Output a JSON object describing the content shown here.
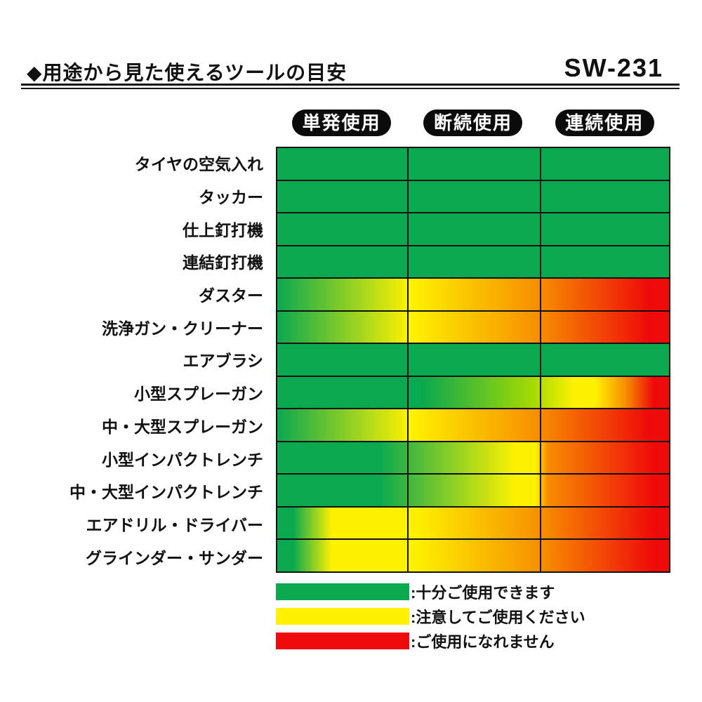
{
  "header": {
    "title": "◆用途から見た使えるツールの目安",
    "model": "SW-231"
  },
  "columns": [
    {
      "label": "単発使用"
    },
    {
      "label": "断続使用"
    },
    {
      "label": "連続使用"
    }
  ],
  "legend": [
    {
      "color": "#0AA84F",
      "label": ":十分ご使用できます"
    },
    {
      "color": "#FFF200",
      "label": ":注意してご使用ください"
    },
    {
      "color": "#EF0A0A",
      "label": ":ご使用になれません"
    }
  ],
  "colors": {
    "ok_green": "#0AA84F",
    "caution_yellow": "#FFF200",
    "warning_orange": "#F78D00",
    "no_red": "#EF0A0A",
    "grid_line": "#111111",
    "pill_black": "#0B0B0B"
  },
  "chart_data": {
    "type": "heatmap",
    "title": "◆用途から見た使えるツールの目安",
    "model": "SW-231",
    "categories": [
      "単発使用",
      "断続使用",
      "連続使用"
    ],
    "legend": [
      {
        "color": "#0AA84F",
        "meaning": "十分ご使用できます"
      },
      {
        "color": "#FFF200",
        "meaning": "注意してご使用ください"
      },
      {
        "color": "#EF0A0A",
        "meaning": "ご使用になれません"
      }
    ],
    "rows": [
      {
        "label": "タイヤの空気入れ",
        "ratings": [
          "ok",
          "ok",
          "ok"
        ],
        "stops": [
          [
            "#0AA84F",
            0
          ],
          [
            "#0AA84F",
            100
          ]
        ]
      },
      {
        "label": "タッカー",
        "ratings": [
          "ok",
          "ok",
          "ok"
        ],
        "stops": [
          [
            "#0AA84F",
            0
          ],
          [
            "#0AA84F",
            100
          ]
        ]
      },
      {
        "label": "仕上釘打機",
        "ratings": [
          "ok",
          "ok",
          "ok"
        ],
        "stops": [
          [
            "#0AA84F",
            0
          ],
          [
            "#0AA84F",
            100
          ]
        ]
      },
      {
        "label": "連結釘打機",
        "ratings": [
          "ok",
          "ok",
          "ok"
        ],
        "stops": [
          [
            "#0AA84F",
            0
          ],
          [
            "#0AA84F",
            100
          ]
        ]
      },
      {
        "label": "ダスター",
        "ratings": [
          "ok→caution",
          "caution→warning",
          "warning→no"
        ],
        "stops": [
          [
            "#0AA84F",
            0
          ],
          [
            "#FFF200",
            34
          ],
          [
            "#F78D00",
            67
          ],
          [
            "#EF0A0A",
            95
          ]
        ]
      },
      {
        "label": "洗浄ガン・クリーナー",
        "ratings": [
          "ok→caution",
          "caution→warning",
          "warning→no"
        ],
        "stops": [
          [
            "#0AA84F",
            0
          ],
          [
            "#FFF200",
            34
          ],
          [
            "#F78D00",
            67
          ],
          [
            "#EF0A0A",
            95
          ]
        ]
      },
      {
        "label": "エアブラシ",
        "ratings": [
          "ok",
          "ok",
          "ok"
        ],
        "stops": [
          [
            "#0AA84F",
            0
          ],
          [
            "#0AA84F",
            100
          ]
        ]
      },
      {
        "label": "小型スプレーガン",
        "ratings": [
          "ok",
          "ok→caution",
          "caution→no"
        ],
        "stops": [
          [
            "#0AA84F",
            0
          ],
          [
            "#0AA84F",
            37
          ],
          [
            "#AADB00",
            66
          ],
          [
            "#FFF200",
            76
          ],
          [
            "#FFF200",
            81
          ],
          [
            "#F78D00",
            89
          ],
          [
            "#EF0A0A",
            96
          ]
        ]
      },
      {
        "label": "中・大型スプレーガン",
        "ratings": [
          "ok→caution",
          "caution→warning",
          "warning→no"
        ],
        "stops": [
          [
            "#0AA84F",
            0
          ],
          [
            "#FFF200",
            34
          ],
          [
            "#F78D00",
            67
          ],
          [
            "#EF0A0A",
            95
          ]
        ]
      },
      {
        "label": "小型インパクトレンチ",
        "ratings": [
          "ok",
          "caution",
          "warning→no"
        ],
        "stops": [
          [
            "#0AA84F",
            0
          ],
          [
            "#0AA84F",
            26
          ],
          [
            "#FFF200",
            61
          ],
          [
            "#FFF200",
            66
          ],
          [
            "#F78D00",
            69
          ],
          [
            "#EF0A0A",
            96
          ]
        ]
      },
      {
        "label": "中・大型インパクトレンチ",
        "ratings": [
          "ok",
          "caution",
          "warning→no"
        ],
        "stops": [
          [
            "#0AA84F",
            0
          ],
          [
            "#0AA84F",
            26
          ],
          [
            "#FFF200",
            61
          ],
          [
            "#FFF200",
            66
          ],
          [
            "#F78D00",
            69
          ],
          [
            "#EF0A0A",
            96
          ]
        ]
      },
      {
        "label": "エアドリル・ドライバー",
        "ratings": [
          "ok→caution",
          "caution→warning",
          "warning→no"
        ],
        "stops": [
          [
            "#0AA84F",
            0
          ],
          [
            "#0AA84F",
            4
          ],
          [
            "#FFF200",
            14
          ],
          [
            "#FFF200",
            35
          ],
          [
            "#F78D00",
            68
          ],
          [
            "#EF0A0A",
            96
          ]
        ]
      },
      {
        "label": "グラインダー・サンダー",
        "ratings": [
          "ok→caution",
          "caution→warning",
          "warning→no"
        ],
        "stops": [
          [
            "#0AA84F",
            0
          ],
          [
            "#0AA84F",
            4
          ],
          [
            "#FFF200",
            14
          ],
          [
            "#FFF200",
            35
          ],
          [
            "#F78D00",
            68
          ],
          [
            "#EF0A0A",
            96
          ]
        ]
      }
    ]
  }
}
